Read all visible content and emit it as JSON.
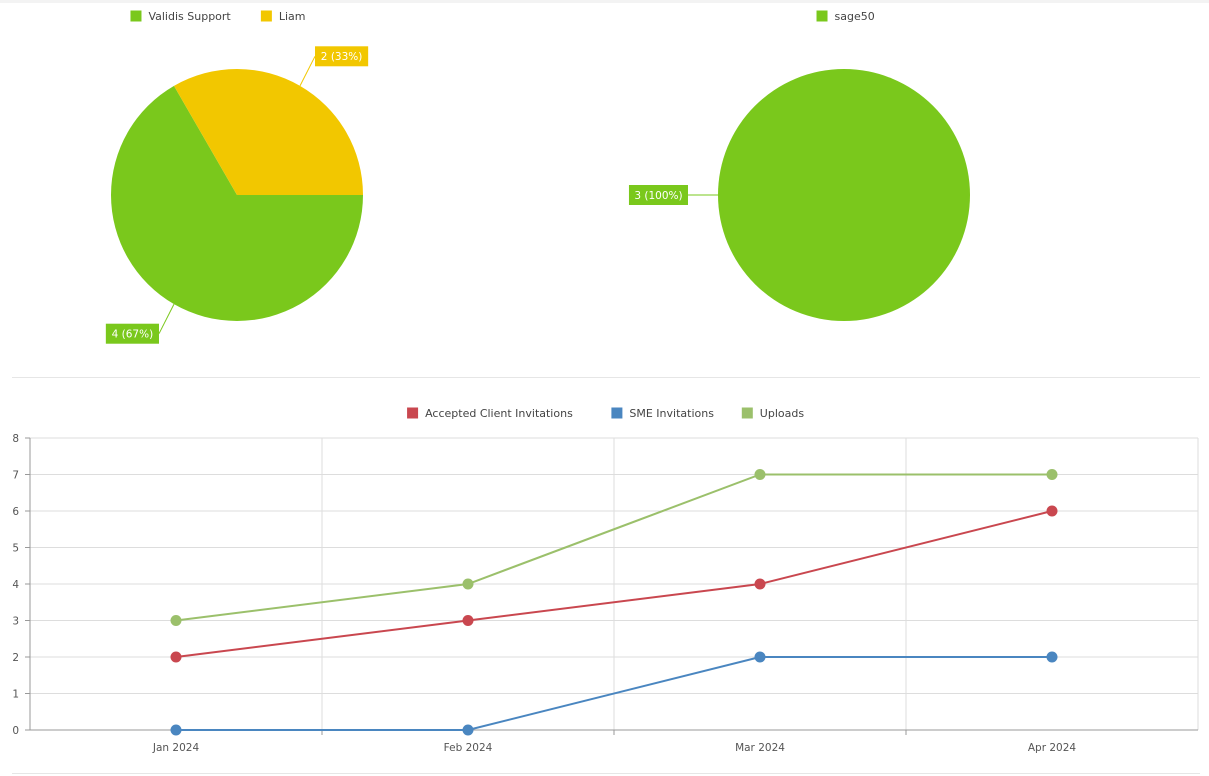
{
  "chart_data": [
    {
      "type": "pie",
      "legend": [
        "Validis Support",
        "Liam"
      ],
      "series": [
        {
          "name": "Validis Support",
          "value": 4,
          "label": "4 (67%)",
          "color": "#7ac81c"
        },
        {
          "name": "Liam",
          "value": 2,
          "label": "2 (33%)",
          "color": "#f2c700"
        }
      ]
    },
    {
      "type": "pie",
      "legend": [
        "sage50"
      ],
      "series": [
        {
          "name": "sage50",
          "value": 3,
          "label": "3 (100%)",
          "color": "#7ac81c"
        }
      ]
    },
    {
      "type": "line",
      "x": [
        "Jan 2024",
        "Feb 2024",
        "Mar 2024",
        "Apr 2024"
      ],
      "ylim": [
        0,
        8
      ],
      "yticks": [
        "0",
        "1",
        "2",
        "3",
        "4",
        "5",
        "6",
        "7",
        "8"
      ],
      "grid": true,
      "legend_position": "top-center",
      "series": [
        {
          "name": "Accepted Client Invitations",
          "values": [
            2,
            3,
            4,
            6
          ],
          "color": "#c9474f"
        },
        {
          "name": "SME Invitations",
          "values": [
            0,
            0,
            2,
            2
          ],
          "color": "#4a86c0"
        },
        {
          "name": "Uploads",
          "values": [
            3,
            4,
            7,
            7
          ],
          "color": "#9bc06b"
        }
      ]
    }
  ]
}
